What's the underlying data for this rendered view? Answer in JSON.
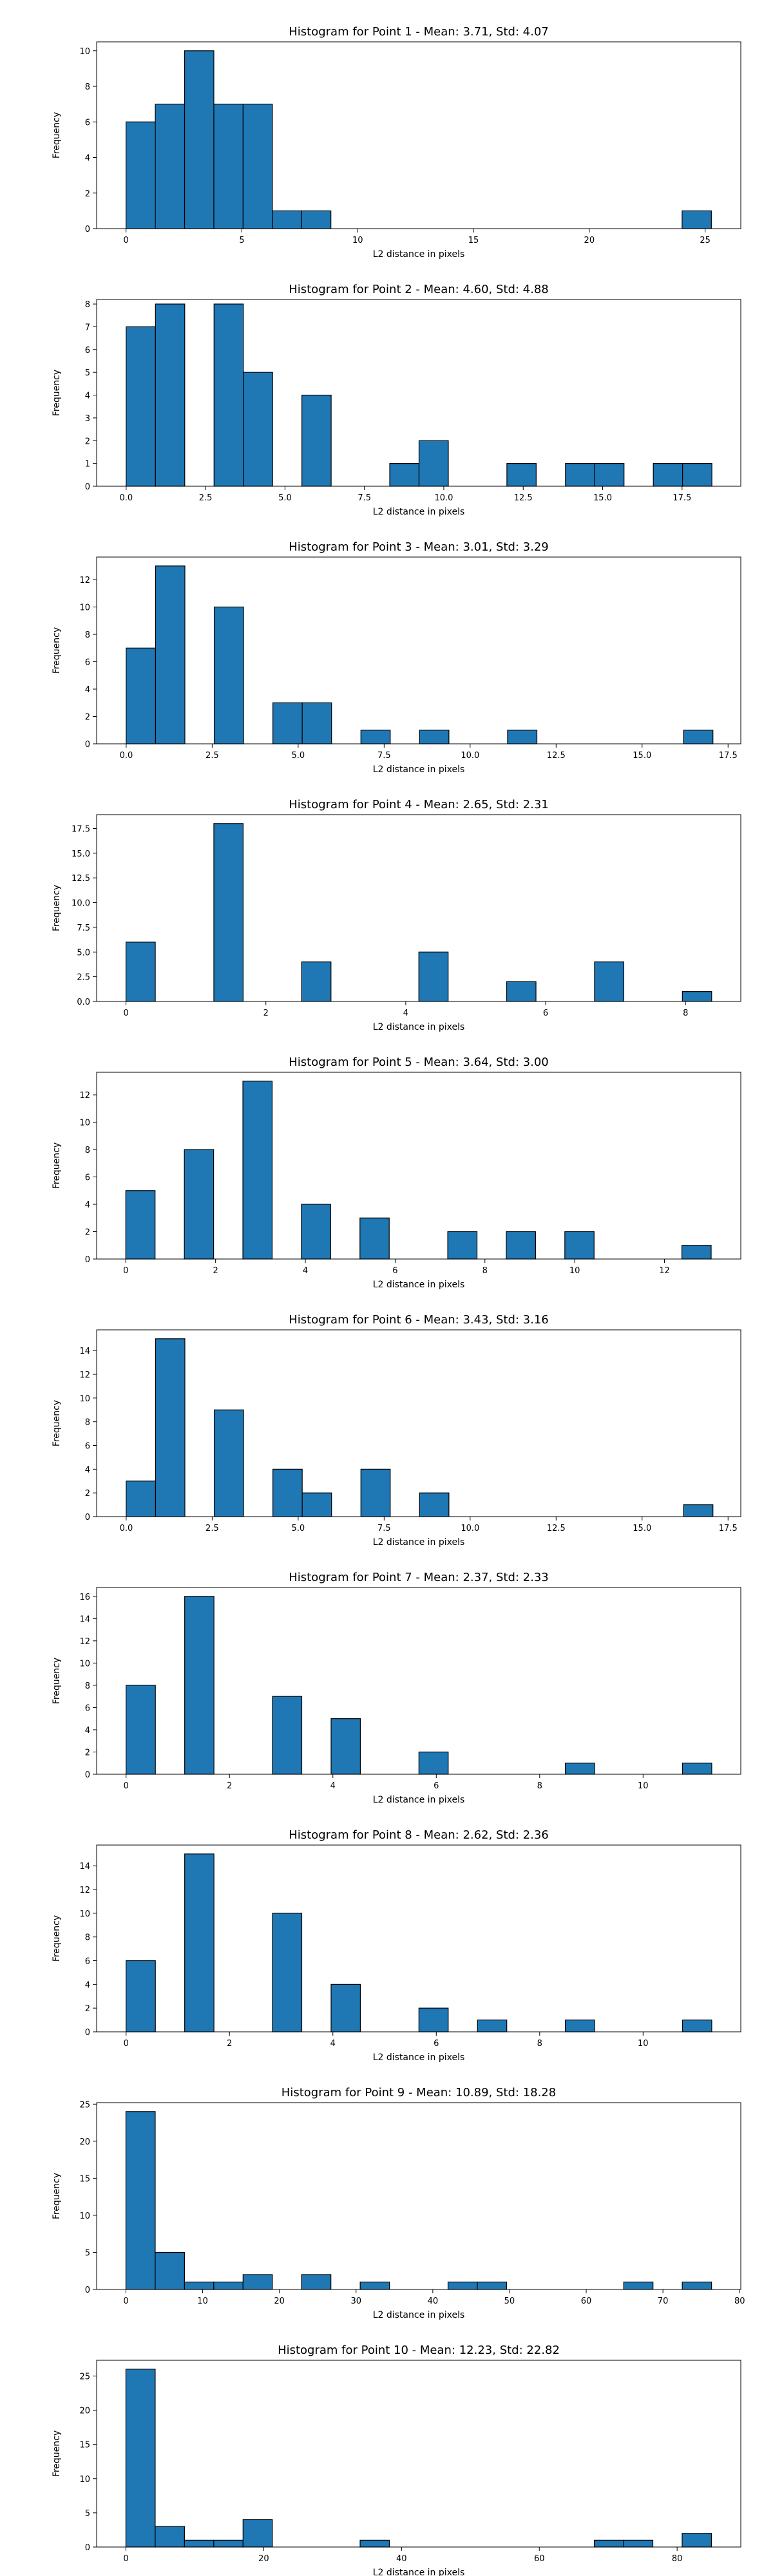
{
  "chart_data": [
    {
      "type": "bar",
      "title": "Histogram for Point 1 - Mean: 3.71, Std: 4.07",
      "xlabel": "L2 distance in pixels",
      "ylabel": "Frequency",
      "xlim": [
        -1.27,
        26.54
      ],
      "ylim": [
        0,
        10.5
      ],
      "xticks": [
        0,
        5,
        10,
        15,
        20,
        25
      ],
      "xtick_labels": [
        "0",
        "5",
        "10",
        "15",
        "20",
        "25"
      ],
      "yticks": [
        0,
        2,
        4,
        6,
        8,
        10
      ],
      "ytick_labels": [
        "0",
        "2",
        "4",
        "6",
        "8",
        "10"
      ],
      "bin_width": 1.2635,
      "bins": [
        {
          "x": 0.0,
          "count": 6
        },
        {
          "x": 1.2635,
          "count": 7
        },
        {
          "x": 2.527,
          "count": 10
        },
        {
          "x": 3.7905,
          "count": 7
        },
        {
          "x": 5.054,
          "count": 7
        },
        {
          "x": 6.3175,
          "count": 1
        },
        {
          "x": 7.581,
          "count": 1
        },
        {
          "x": 24.0065,
          "count": 1
        }
      ]
    },
    {
      "type": "bar",
      "title": "Histogram for Point 2 - Mean: 4.60, Std: 4.88",
      "xlabel": "L2 distance in pixels",
      "ylabel": "Frequency",
      "xlim": [
        -0.93,
        19.35
      ],
      "ylim": [
        0,
        8.2
      ],
      "xticks": [
        0,
        2.5,
        5,
        7.5,
        10,
        12.5,
        15,
        17.5
      ],
      "xtick_labels": [
        "0.0",
        "2.5",
        "5.0",
        "7.5",
        "10.0",
        "12.5",
        "15.0",
        "17.5"
      ],
      "yticks": [
        0,
        1,
        2,
        3,
        4,
        5,
        6,
        7,
        8
      ],
      "ytick_labels": [
        "0",
        "1",
        "2",
        "3",
        "4",
        "5",
        "6",
        "7",
        "8"
      ],
      "bin_width": 0.922,
      "bins": [
        {
          "x": 0.0,
          "count": 7
        },
        {
          "x": 0.922,
          "count": 8
        },
        {
          "x": 2.766,
          "count": 8
        },
        {
          "x": 3.688,
          "count": 5
        },
        {
          "x": 5.532,
          "count": 4
        },
        {
          "x": 8.298,
          "count": 1
        },
        {
          "x": 9.22,
          "count": 2
        },
        {
          "x": 11.986,
          "count": 1
        },
        {
          "x": 13.83,
          "count": 1
        },
        {
          "x": 14.752,
          "count": 1
        },
        {
          "x": 16.596,
          "count": 1
        },
        {
          "x": 17.518,
          "count": 1
        }
      ]
    },
    {
      "type": "bar",
      "title": "Histogram for Point 3 - Mean: 3.01, Std: 3.29",
      "xlabel": "L2 distance in pixels",
      "ylabel": "Frequency",
      "xlim": [
        -0.86,
        17.87
      ],
      "ylim": [
        0,
        13.65
      ],
      "xticks": [
        0,
        2.5,
        5,
        7.5,
        10,
        12.5,
        15,
        17.5
      ],
      "xtick_labels": [
        "0.0",
        "2.5",
        "5.0",
        "7.5",
        "10.0",
        "12.5",
        "15.0",
        "17.5"
      ],
      "yticks": [
        0,
        2,
        4,
        6,
        8,
        10,
        12
      ],
      "ytick_labels": [
        "0",
        "2",
        "4",
        "6",
        "8",
        "10",
        "12"
      ],
      "bin_width": 0.853,
      "bins": [
        {
          "x": 0.0,
          "count": 7
        },
        {
          "x": 0.853,
          "count": 13
        },
        {
          "x": 2.559,
          "count": 10
        },
        {
          "x": 4.265,
          "count": 3
        },
        {
          "x": 5.118,
          "count": 3
        },
        {
          "x": 6.824,
          "count": 1
        },
        {
          "x": 8.53,
          "count": 1
        },
        {
          "x": 11.089,
          "count": 1
        },
        {
          "x": 16.207,
          "count": 1
        }
      ]
    },
    {
      "type": "bar",
      "title": "Histogram for Point 4 - Mean: 2.65, Std: 2.31",
      "xlabel": "L2 distance in pixels",
      "ylabel": "Frequency",
      "xlim": [
        -0.42,
        8.79
      ],
      "ylim": [
        0,
        18.9
      ],
      "xticks": [
        0,
        2,
        4,
        6,
        8
      ],
      "xtick_labels": [
        "0",
        "2",
        "4",
        "6",
        "8"
      ],
      "yticks": [
        0,
        2.5,
        5,
        7.5,
        10,
        12.5,
        15,
        17.5
      ],
      "ytick_labels": [
        "0.0",
        "2.5",
        "5.0",
        "7.5",
        "10.0",
        "12.5",
        "15.0",
        "17.5"
      ],
      "bin_width": 0.4187,
      "bins": [
        {
          "x": 0.0,
          "count": 6
        },
        {
          "x": 1.256,
          "count": 18
        },
        {
          "x": 2.512,
          "count": 4
        },
        {
          "x": 4.187,
          "count": 5
        },
        {
          "x": 5.443,
          "count": 2
        },
        {
          "x": 6.699,
          "count": 4
        },
        {
          "x": 7.955,
          "count": 1
        }
      ]
    },
    {
      "type": "bar",
      "title": "Histogram for Point 5 - Mean: 3.64, Std: 3.00",
      "xlabel": "L2 distance in pixels",
      "ylabel": "Frequency",
      "xlim": [
        -0.65,
        13.7
      ],
      "ylim": [
        0,
        13.65
      ],
      "xticks": [
        0,
        2,
        4,
        6,
        8,
        10,
        12
      ],
      "xtick_labels": [
        "0",
        "2",
        "4",
        "6",
        "8",
        "10",
        "12"
      ],
      "yticks": [
        0,
        2,
        4,
        6,
        8,
        10,
        12
      ],
      "ytick_labels": [
        "0",
        "2",
        "4",
        "6",
        "8",
        "10",
        "12"
      ],
      "bin_width": 0.652,
      "bins": [
        {
          "x": 0.0,
          "count": 5
        },
        {
          "x": 1.304,
          "count": 8
        },
        {
          "x": 2.608,
          "count": 13
        },
        {
          "x": 3.912,
          "count": 4
        },
        {
          "x": 5.216,
          "count": 3
        },
        {
          "x": 7.172,
          "count": 2
        },
        {
          "x": 8.476,
          "count": 2
        },
        {
          "x": 9.78,
          "count": 2
        },
        {
          "x": 12.388,
          "count": 1
        }
      ]
    },
    {
      "type": "bar",
      "title": "Histogram for Point 6 - Mean: 3.43, Std: 3.16",
      "xlabel": "L2 distance in pixels",
      "ylabel": "Frequency",
      "xlim": [
        -0.86,
        17.87
      ],
      "ylim": [
        0,
        15.75
      ],
      "xticks": [
        0,
        2.5,
        5,
        7.5,
        10,
        12.5,
        15,
        17.5
      ],
      "xtick_labels": [
        "0.0",
        "2.5",
        "5.0",
        "7.5",
        "10.0",
        "12.5",
        "15.0",
        "17.5"
      ],
      "yticks": [
        0,
        2,
        4,
        6,
        8,
        10,
        12,
        14
      ],
      "ytick_labels": [
        "0",
        "2",
        "4",
        "6",
        "8",
        "10",
        "12",
        "14"
      ],
      "bin_width": 0.853,
      "bins": [
        {
          "x": 0.0,
          "count": 3
        },
        {
          "x": 0.853,
          "count": 15
        },
        {
          "x": 2.559,
          "count": 9
        },
        {
          "x": 4.265,
          "count": 4
        },
        {
          "x": 5.118,
          "count": 2
        },
        {
          "x": 6.824,
          "count": 4
        },
        {
          "x": 8.53,
          "count": 2
        },
        {
          "x": 16.207,
          "count": 1
        }
      ]
    },
    {
      "type": "bar",
      "title": "Histogram for Point 7 - Mean: 2.37, Std: 2.33",
      "xlabel": "L2 distance in pixels",
      "ylabel": "Frequency",
      "xlim": [
        -0.57,
        11.89
      ],
      "ylim": [
        0,
        16.8
      ],
      "xticks": [
        0,
        2,
        4,
        6,
        8,
        10
      ],
      "xtick_labels": [
        "0",
        "2",
        "4",
        "6",
        "8",
        "10"
      ],
      "yticks": [
        0,
        2,
        4,
        6,
        8,
        10,
        12,
        14,
        16
      ],
      "ytick_labels": [
        "0",
        "2",
        "4",
        "6",
        "8",
        "10",
        "12",
        "14",
        "16"
      ],
      "bin_width": 0.5664,
      "bins": [
        {
          "x": 0.0,
          "count": 8
        },
        {
          "x": 1.133,
          "count": 16
        },
        {
          "x": 2.832,
          "count": 7
        },
        {
          "x": 3.965,
          "count": 5
        },
        {
          "x": 5.664,
          "count": 2
        },
        {
          "x": 8.496,
          "count": 1
        },
        {
          "x": 10.762,
          "count": 1
        }
      ]
    },
    {
      "type": "bar",
      "title": "Histogram for Point 8 - Mean: 2.62, Std: 2.36",
      "xlabel": "L2 distance in pixels",
      "ylabel": "Frequency",
      "xlim": [
        -0.57,
        11.89
      ],
      "ylim": [
        0,
        15.75
      ],
      "xticks": [
        0,
        2,
        4,
        6,
        8,
        10
      ],
      "xtick_labels": [
        "0",
        "2",
        "4",
        "6",
        "8",
        "10"
      ],
      "yticks": [
        0,
        2,
        4,
        6,
        8,
        10,
        12,
        14
      ],
      "ytick_labels": [
        "0",
        "2",
        "4",
        "6",
        "8",
        "10",
        "12",
        "14"
      ],
      "bin_width": 0.5664,
      "bins": [
        {
          "x": 0.0,
          "count": 6
        },
        {
          "x": 1.133,
          "count": 15
        },
        {
          "x": 2.832,
          "count": 10
        },
        {
          "x": 3.965,
          "count": 4
        },
        {
          "x": 5.664,
          "count": 2
        },
        {
          "x": 6.797,
          "count": 1
        },
        {
          "x": 8.496,
          "count": 1
        },
        {
          "x": 10.762,
          "count": 1
        }
      ]
    },
    {
      "type": "bar",
      "title": "Histogram for Point 9 - Mean: 10.89, Std: 18.28",
      "xlabel": "L2 distance in pixels",
      "ylabel": "Frequency",
      "xlim": [
        -3.82,
        80.15
      ],
      "ylim": [
        0,
        25.2
      ],
      "xticks": [
        0,
        10,
        20,
        30,
        40,
        50,
        60,
        70,
        80
      ],
      "xtick_labels": [
        "0",
        "10",
        "20",
        "30",
        "40",
        "50",
        "60",
        "70",
        "80"
      ],
      "yticks": [
        0,
        5,
        10,
        15,
        20,
        25
      ],
      "ytick_labels": [
        "0",
        "5",
        "10",
        "15",
        "20",
        "25"
      ],
      "bin_width": 3.817,
      "bins": [
        {
          "x": 0.0,
          "count": 24
        },
        {
          "x": 3.817,
          "count": 5
        },
        {
          "x": 7.634,
          "count": 1
        },
        {
          "x": 11.451,
          "count": 1
        },
        {
          "x": 15.268,
          "count": 2
        },
        {
          "x": 22.902,
          "count": 2
        },
        {
          "x": 30.536,
          "count": 1
        },
        {
          "x": 41.987,
          "count": 1
        },
        {
          "x": 45.804,
          "count": 1
        },
        {
          "x": 64.889,
          "count": 1
        },
        {
          "x": 72.523,
          "count": 1
        }
      ]
    },
    {
      "type": "bar",
      "title": "Histogram for Point 10 - Mean: 12.23, Std: 22.82",
      "xlabel": "L2 distance in pixels",
      "ylabel": "Frequency",
      "xlim": [
        -4.25,
        89.24
      ],
      "ylim": [
        0,
        27.3
      ],
      "xticks": [
        0,
        20,
        40,
        60,
        80
      ],
      "xtick_labels": [
        "0",
        "20",
        "40",
        "60",
        "80"
      ],
      "yticks": [
        0,
        5,
        10,
        15,
        20,
        25
      ],
      "ytick_labels": [
        "0",
        "5",
        "10",
        "15",
        "20",
        "25"
      ],
      "bin_width": 4.25,
      "bins": [
        {
          "x": 0.0,
          "count": 26
        },
        {
          "x": 4.25,
          "count": 3
        },
        {
          "x": 8.5,
          "count": 1
        },
        {
          "x": 12.75,
          "count": 1
        },
        {
          "x": 17.0,
          "count": 4
        },
        {
          "x": 33.99,
          "count": 1
        },
        {
          "x": 67.98,
          "count": 1
        },
        {
          "x": 72.23,
          "count": 1
        },
        {
          "x": 80.73,
          "count": 2
        }
      ]
    }
  ]
}
